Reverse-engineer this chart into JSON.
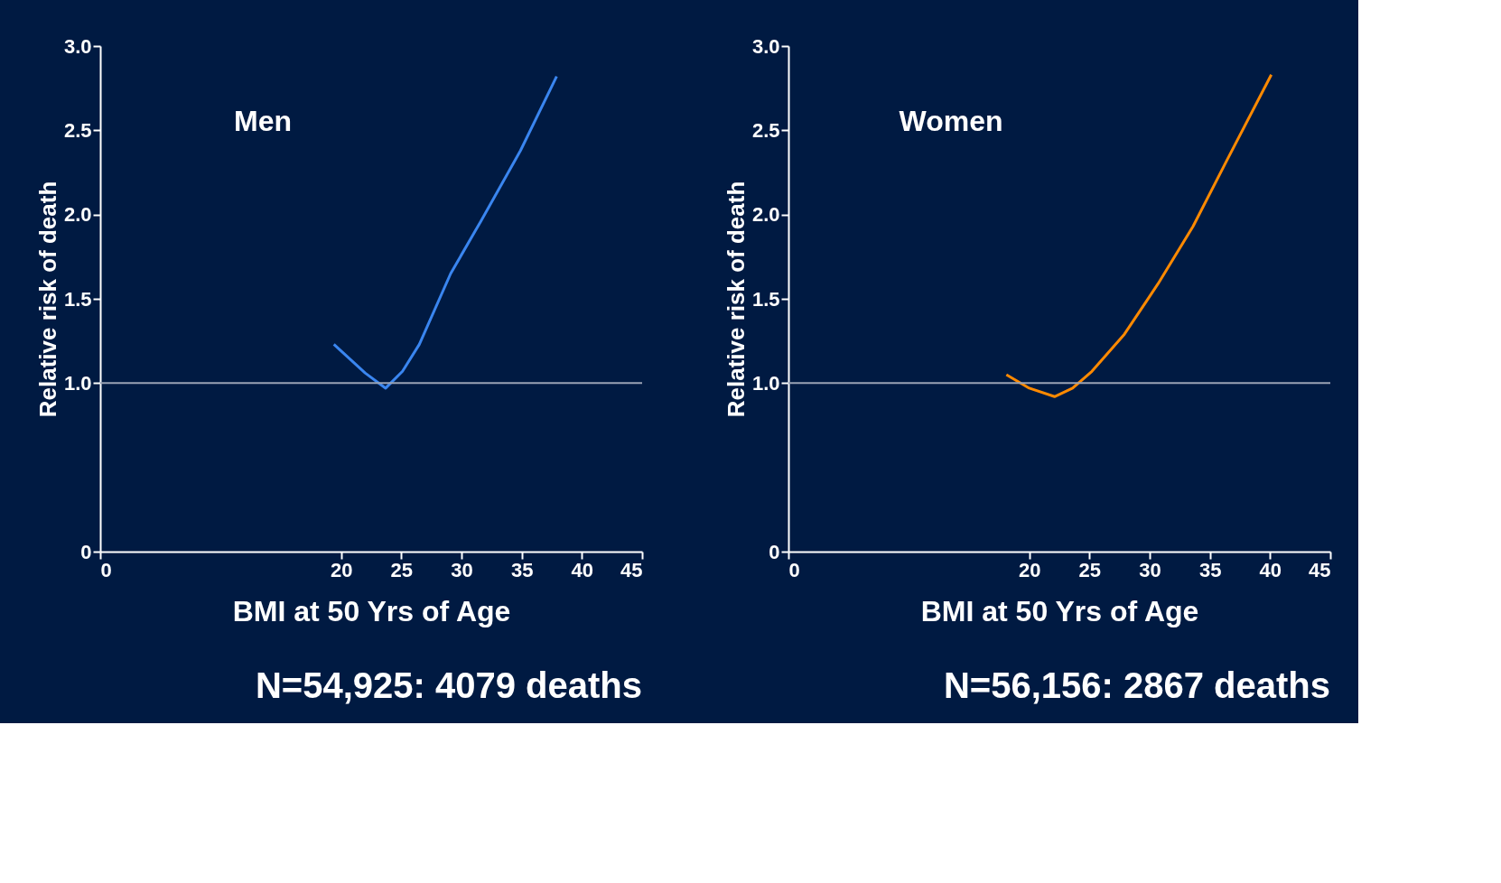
{
  "chart_data": [
    {
      "type": "line",
      "title": "Men",
      "xlabel": "BMI at 50 Yrs of Age",
      "ylabel": "Relative risk of death",
      "series": [
        {
          "color": "#3a86f0",
          "x": [
            19.4,
            22.0,
            23.7,
            25.1,
            26.5,
            29.1,
            31.6,
            34.9,
            37.9
          ],
          "values": [
            1.23,
            1.06,
            0.97,
            1.07,
            1.23,
            1.65,
            1.96,
            2.38,
            2.82
          ]
        }
      ],
      "xlim": [
        0,
        45
      ],
      "xticks": [
        0,
        20,
        25,
        30,
        35,
        40,
        45
      ],
      "ylim": [
        0,
        3.0
      ],
      "yticks": [
        0,
        {
          "value": 1.0,
          "label": "1.0"
        },
        1.5,
        {
          "value": 2.0,
          "label": "2.0"
        },
        2.5,
        {
          "value": 3.0,
          "label": "3.0"
        }
      ],
      "ref_lines": [
        {
          "axis": "y",
          "value": 1.0,
          "color": "#9aa3b5"
        }
      ],
      "annotations": [
        "N=54,925: 4079 deaths"
      ],
      "grid": false,
      "marker": "none",
      "line_style": "solid"
    },
    {
      "type": "line",
      "title": "Women",
      "xlabel": "BMI at 50 Yrs of Age",
      "ylabel": "Relative risk of death",
      "series": [
        {
          "color": "#ff8a00",
          "x": [
            18.1,
            20.0,
            22.1,
            23.6,
            25.2,
            27.9,
            30.7,
            33.6,
            36.4,
            40.1
          ],
          "values": [
            1.05,
            0.97,
            0.92,
            0.97,
            1.07,
            1.29,
            1.59,
            1.93,
            2.32,
            2.83
          ]
        }
      ],
      "xlim": [
        0,
        45
      ],
      "xticks": [
        0,
        20,
        25,
        30,
        35,
        40,
        45
      ],
      "ylim": [
        0,
        3.0
      ],
      "yticks": [
        0,
        {
          "value": 1.0,
          "label": "1.0"
        },
        1.5,
        {
          "value": 2.0,
          "label": "2.0"
        },
        2.5,
        {
          "value": 3.0,
          "label": "3.0"
        }
      ],
      "ref_lines": [
        {
          "axis": "y",
          "value": 1.0,
          "color": "#9aa3b5"
        }
      ],
      "annotations": [
        "N=56,156: 2867 deaths"
      ],
      "grid": false,
      "marker": "none",
      "line_style": "solid"
    }
  ]
}
